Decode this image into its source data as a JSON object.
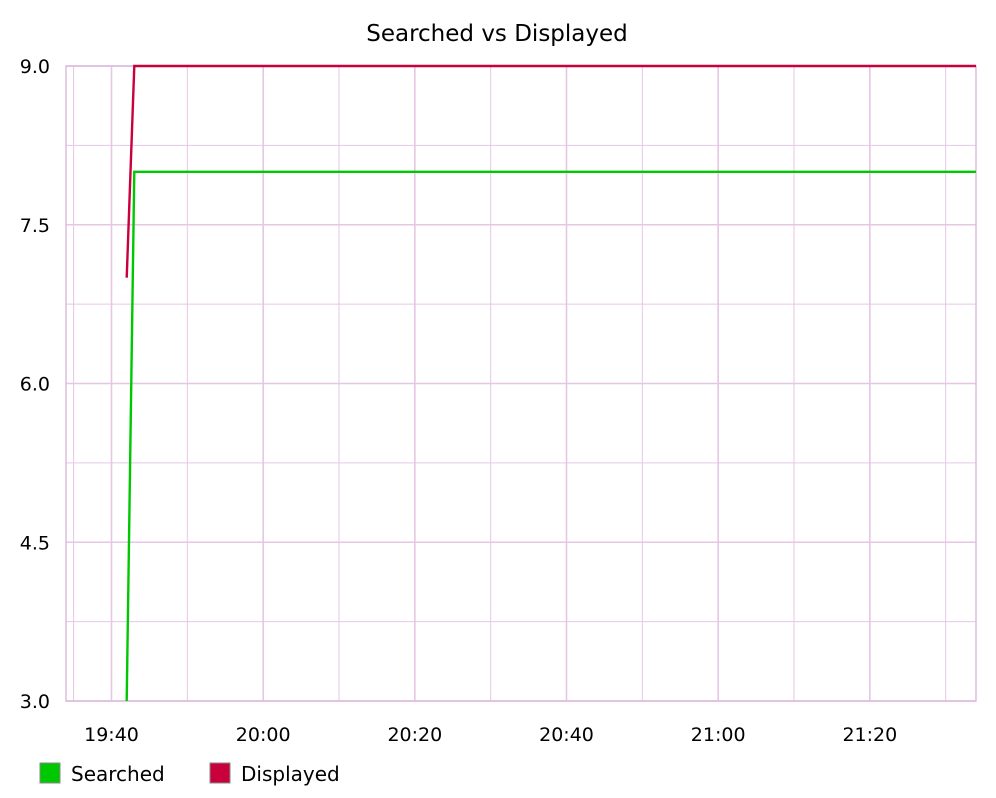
{
  "chart_data": {
    "type": "line",
    "title": "Searched vs Displayed",
    "xlabel": "",
    "ylabel": "",
    "x_axis_type": "time",
    "xlim": [
      "19:34",
      "21:34"
    ],
    "ylim": [
      3.0,
      9.0
    ],
    "grid": true,
    "legend_position": "bottom-left",
    "x_ticks": [
      "19:40",
      "20:00",
      "20:20",
      "20:40",
      "21:00",
      "21:20"
    ],
    "y_ticks": [
      "3.0",
      "4.5",
      "6.0",
      "7.5",
      "9.0"
    ],
    "series": [
      {
        "name": "Searched",
        "color": "#00c800",
        "x": [
          "19:42",
          "19:43",
          "21:34"
        ],
        "y": [
          3.0,
          8.0,
          8.0
        ]
      },
      {
        "name": "Displayed",
        "color": "#c8003c",
        "x": [
          "19:42",
          "19:43",
          "21:34"
        ],
        "y": [
          7.0,
          9.0,
          9.0
        ]
      }
    ],
    "grid_color": "#e5c6e5",
    "axis_color": "#dcb8dc"
  }
}
